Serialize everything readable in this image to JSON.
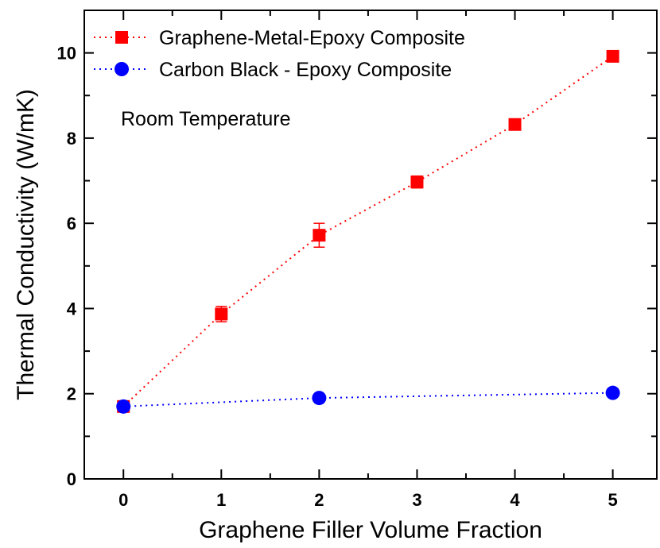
{
  "chart_data": {
    "type": "scatter",
    "xlabel": "Graphene Filler Volume Fraction",
    "ylabel": "Thermal Conductivity (W/mK)",
    "xlim": [
      -0.4,
      5.45
    ],
    "ylim": [
      0,
      11
    ],
    "x_ticks": [
      0,
      1,
      2,
      3,
      4,
      5
    ],
    "y_ticks": [
      0,
      2,
      4,
      6,
      8,
      10
    ],
    "x_tick_labels": [
      "0",
      "1",
      "2",
      "3",
      "4",
      "5"
    ],
    "y_tick_labels": [
      "0",
      "2",
      "4",
      "6",
      "8",
      "10"
    ],
    "grid": false,
    "legend_position": "top-left",
    "annotation": "Room Temperature",
    "series": [
      {
        "name": "Graphene-Metal-Epoxy Composite",
        "color": "#ff0000",
        "marker": "square",
        "line_style": "dotted",
        "x": [
          0,
          1,
          2,
          3,
          4,
          5
        ],
        "y": [
          1.7,
          3.87,
          5.72,
          6.97,
          8.32,
          9.92
        ],
        "error": [
          0.1,
          0.18,
          0.28,
          0.14,
          0.1,
          0.08
        ]
      },
      {
        "name": "Carbon Black - Epoxy Composite",
        "color": "#0000ff",
        "marker": "circle",
        "line_style": "dotted",
        "x": [
          0,
          2,
          5
        ],
        "y": [
          1.7,
          1.9,
          2.02
        ],
        "error": [
          0,
          0,
          0
        ]
      }
    ]
  }
}
